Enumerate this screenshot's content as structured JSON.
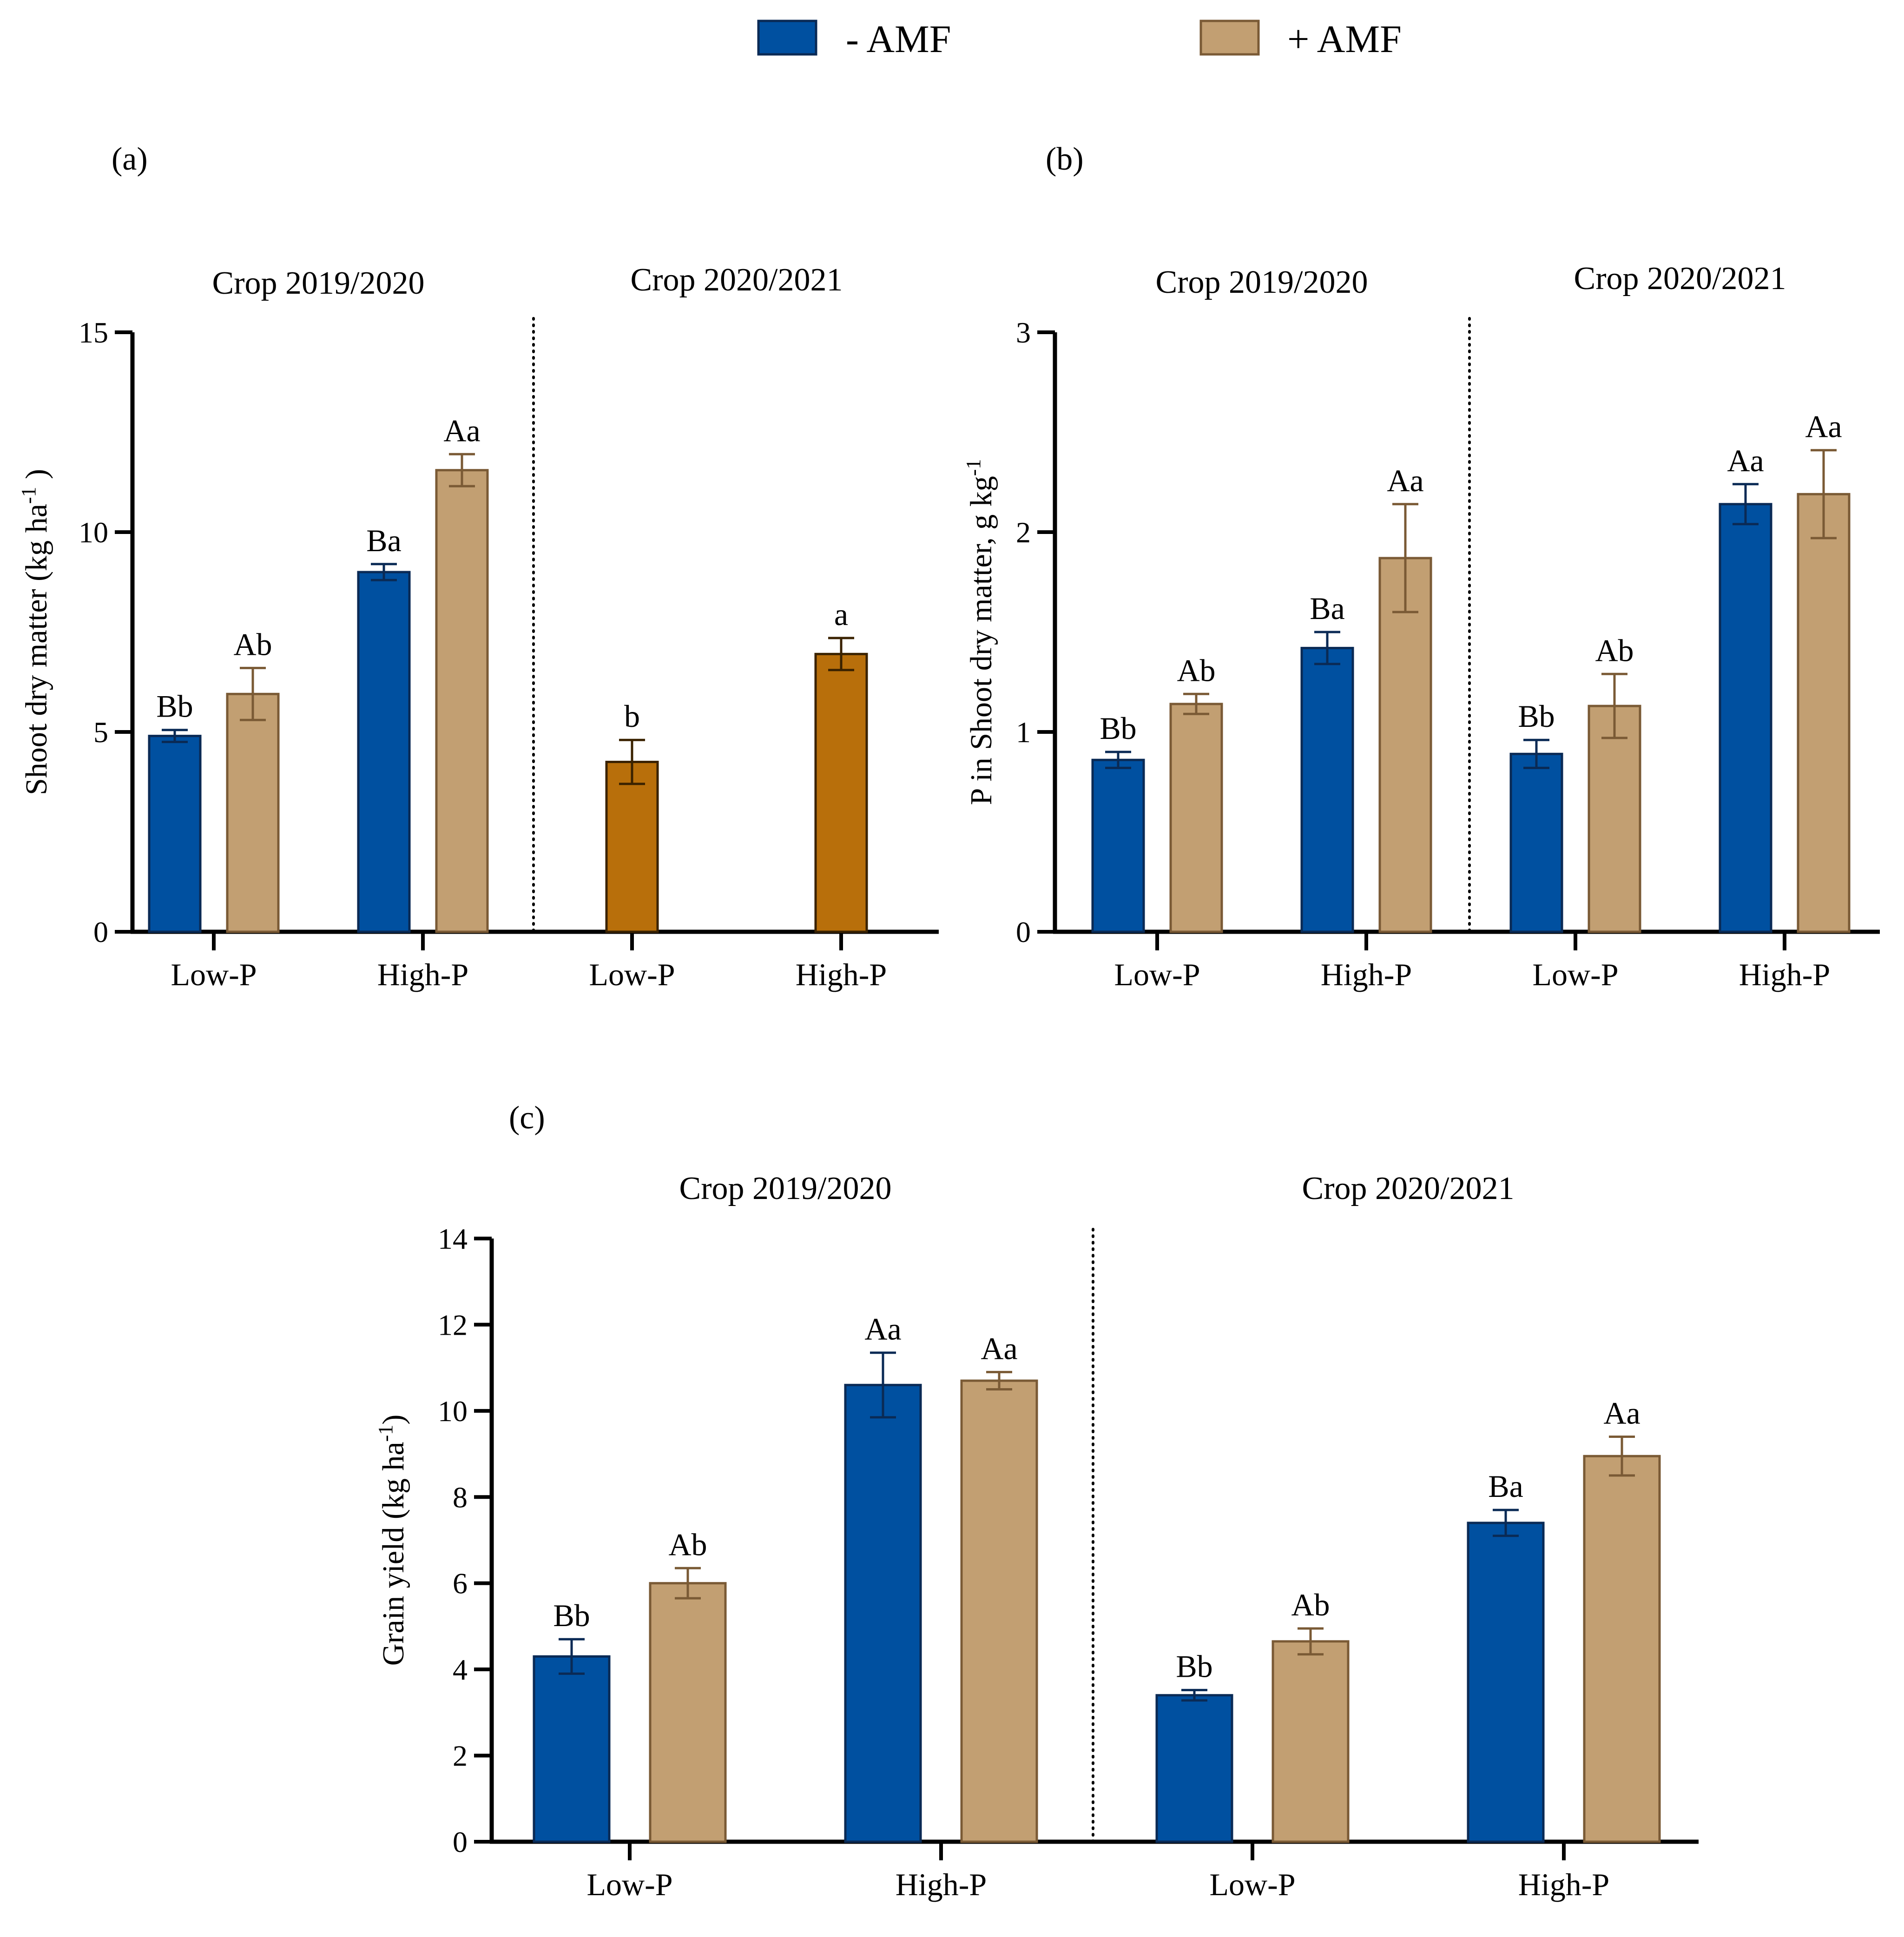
{
  "colors": {
    "minus_amf_fill": "#0050A0",
    "minus_amf_stroke": "#0A2A55",
    "plus_amf_fill": "#C29F72",
    "plus_amf_stroke": "#7A5A35",
    "single_fill": "#B86F0B",
    "single_stroke": "#3A2200"
  },
  "legend": {
    "items": [
      {
        "label": "- AMF",
        "color_key": "minus_amf"
      },
      {
        "label": "+ AMF",
        "color_key": "plus_amf"
      }
    ]
  },
  "chart_data": [
    {
      "panel": "(a)",
      "type": "bar",
      "ylabel": "Shoot dry matter (kg ha-1 )",
      "ylabel_parts": {
        "pre": "Shoot dry matter (kg ha",
        "sup": "-1",
        "post": " )"
      },
      "ylim": [
        0,
        15
      ],
      "yticks": [
        0,
        5,
        10,
        15
      ],
      "groups": [
        {
          "title": "Crop 2019/2020",
          "categories": [
            {
              "label": "Low-P",
              "bars": [
                {
                  "series": "- AMF",
                  "value": 4.9,
                  "err": 0.15,
                  "sig": "Bb",
                  "color_key": "minus_amf"
                },
                {
                  "series": "+ AMF",
                  "value": 5.95,
                  "err": 0.65,
                  "sig": "Ab",
                  "color_key": "plus_amf"
                }
              ]
            },
            {
              "label": "High-P",
              "bars": [
                {
                  "series": "- AMF",
                  "value": 9.0,
                  "err": 0.2,
                  "sig": "Ba",
                  "color_key": "minus_amf"
                },
                {
                  "series": "+ AMF",
                  "value": 11.55,
                  "err": 0.4,
                  "sig": "Aa",
                  "color_key": "plus_amf"
                }
              ]
            }
          ]
        },
        {
          "title": "Crop 2020/2021",
          "categories": [
            {
              "label": "Low-P",
              "bars": [
                {
                  "series": "single",
                  "value": 4.25,
                  "err": 0.55,
                  "sig": "b",
                  "color_key": "single"
                }
              ]
            },
            {
              "label": "High-P",
              "bars": [
                {
                  "series": "single",
                  "value": 6.95,
                  "err": 0.4,
                  "sig": "a",
                  "color_key": "single"
                }
              ]
            }
          ]
        }
      ]
    },
    {
      "panel": "(b)",
      "type": "bar",
      "ylabel": "P in Shoot dry matter, g kg-1",
      "ylabel_parts": {
        "pre": "P in Shoot dry matter, g kg",
        "sup": "-1",
        "post": ""
      },
      "ylim": [
        0,
        3
      ],
      "yticks": [
        0,
        1,
        2,
        3
      ],
      "groups": [
        {
          "title": "Crop 2019/2020",
          "categories": [
            {
              "label": "Low-P",
              "bars": [
                {
                  "series": "- AMF",
                  "value": 0.86,
                  "err": 0.04,
                  "sig": "Bb",
                  "color_key": "minus_amf"
                },
                {
                  "series": "+ AMF",
                  "value": 1.14,
                  "err": 0.05,
                  "sig": "Ab",
                  "color_key": "plus_amf"
                }
              ]
            },
            {
              "label": "High-P",
              "bars": [
                {
                  "series": "- AMF",
                  "value": 1.42,
                  "err": 0.08,
                  "sig": "Ba",
                  "color_key": "minus_amf"
                },
                {
                  "series": "+ AMF",
                  "value": 1.87,
                  "err": 0.27,
                  "sig": "Aa",
                  "color_key": "plus_amf"
                }
              ]
            }
          ]
        },
        {
          "title": "Crop 2020/2021",
          "categories": [
            {
              "label": "Low-P",
              "bars": [
                {
                  "series": "- AMF",
                  "value": 0.89,
                  "err": 0.07,
                  "sig": "Bb",
                  "color_key": "minus_amf"
                },
                {
                  "series": "+ AMF",
                  "value": 1.13,
                  "err": 0.16,
                  "sig": "Ab",
                  "color_key": "plus_amf"
                }
              ]
            },
            {
              "label": "High-P",
              "bars": [
                {
                  "series": "- AMF",
                  "value": 2.14,
                  "err": 0.1,
                  "sig": "Aa",
                  "color_key": "minus_amf"
                },
                {
                  "series": "+ AMF",
                  "value": 2.19,
                  "err": 0.22,
                  "sig": "Aa",
                  "color_key": "plus_amf"
                }
              ]
            }
          ]
        }
      ]
    },
    {
      "panel": "(c)",
      "type": "bar",
      "ylabel": "Grain yield (kg ha-1)",
      "ylabel_parts": {
        "pre": "Grain yield (kg ha",
        "sup": "-1",
        "post": ")"
      },
      "ylim": [
        0,
        14
      ],
      "yticks": [
        0,
        2,
        4,
        6,
        8,
        10,
        12,
        14
      ],
      "groups": [
        {
          "title": "Crop 2019/2020",
          "categories": [
            {
              "label": "Low-P",
              "bars": [
                {
                  "series": "- AMF",
                  "value": 4.3,
                  "err": 0.4,
                  "sig": "Bb",
                  "color_key": "minus_amf"
                },
                {
                  "series": "+ AMF",
                  "value": 6.0,
                  "err": 0.35,
                  "sig": "Ab",
                  "color_key": "plus_amf"
                }
              ]
            },
            {
              "label": "High-P",
              "bars": [
                {
                  "series": "- AMF",
                  "value": 10.6,
                  "err": 0.75,
                  "sig": "Aa",
                  "color_key": "minus_amf"
                },
                {
                  "series": "+ AMF",
                  "value": 10.7,
                  "err": 0.2,
                  "sig": "Aa",
                  "color_key": "plus_amf"
                }
              ]
            }
          ]
        },
        {
          "title": "Crop 2020/2021",
          "categories": [
            {
              "label": "Low-P",
              "bars": [
                {
                  "series": "- AMF",
                  "value": 3.4,
                  "err": 0.12,
                  "sig": "Bb",
                  "color_key": "minus_amf"
                },
                {
                  "series": "+ AMF",
                  "value": 4.65,
                  "err": 0.3,
                  "sig": "Ab",
                  "color_key": "plus_amf"
                }
              ]
            },
            {
              "label": "High-P",
              "bars": [
                {
                  "series": "- AMF",
                  "value": 7.4,
                  "err": 0.3,
                  "sig": "Ba",
                  "color_key": "minus_amf"
                },
                {
                  "series": "+ AMF",
                  "value": 8.95,
                  "err": 0.45,
                  "sig": "Aa",
                  "color_key": "plus_amf"
                }
              ]
            }
          ]
        }
      ]
    }
  ]
}
